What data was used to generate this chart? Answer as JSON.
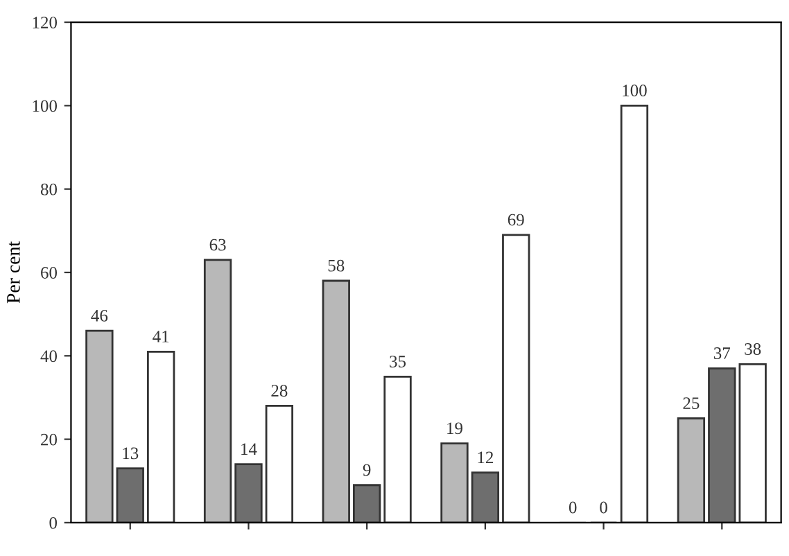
{
  "chart_data": {
    "type": "bar",
    "ylabel": "Per cent",
    "categories": [
      null,
      null,
      null,
      null,
      null,
      null
    ],
    "series": [
      {
        "color": "#b8b8b8",
        "values": [
          46,
          63,
          58,
          19,
          0,
          25
        ]
      },
      {
        "color": "#6e6e6e",
        "values": [
          13,
          14,
          9,
          12,
          0,
          37
        ]
      },
      {
        "color": "#ffffff",
        "values": [
          41,
          28,
          35,
          69,
          100,
          38
        ]
      }
    ],
    "ylim": [
      0,
      120
    ],
    "yticks": [
      0,
      20,
      40,
      60,
      80,
      100,
      120
    ],
    "data_labels": true,
    "grid": false,
    "legend": false
  }
}
